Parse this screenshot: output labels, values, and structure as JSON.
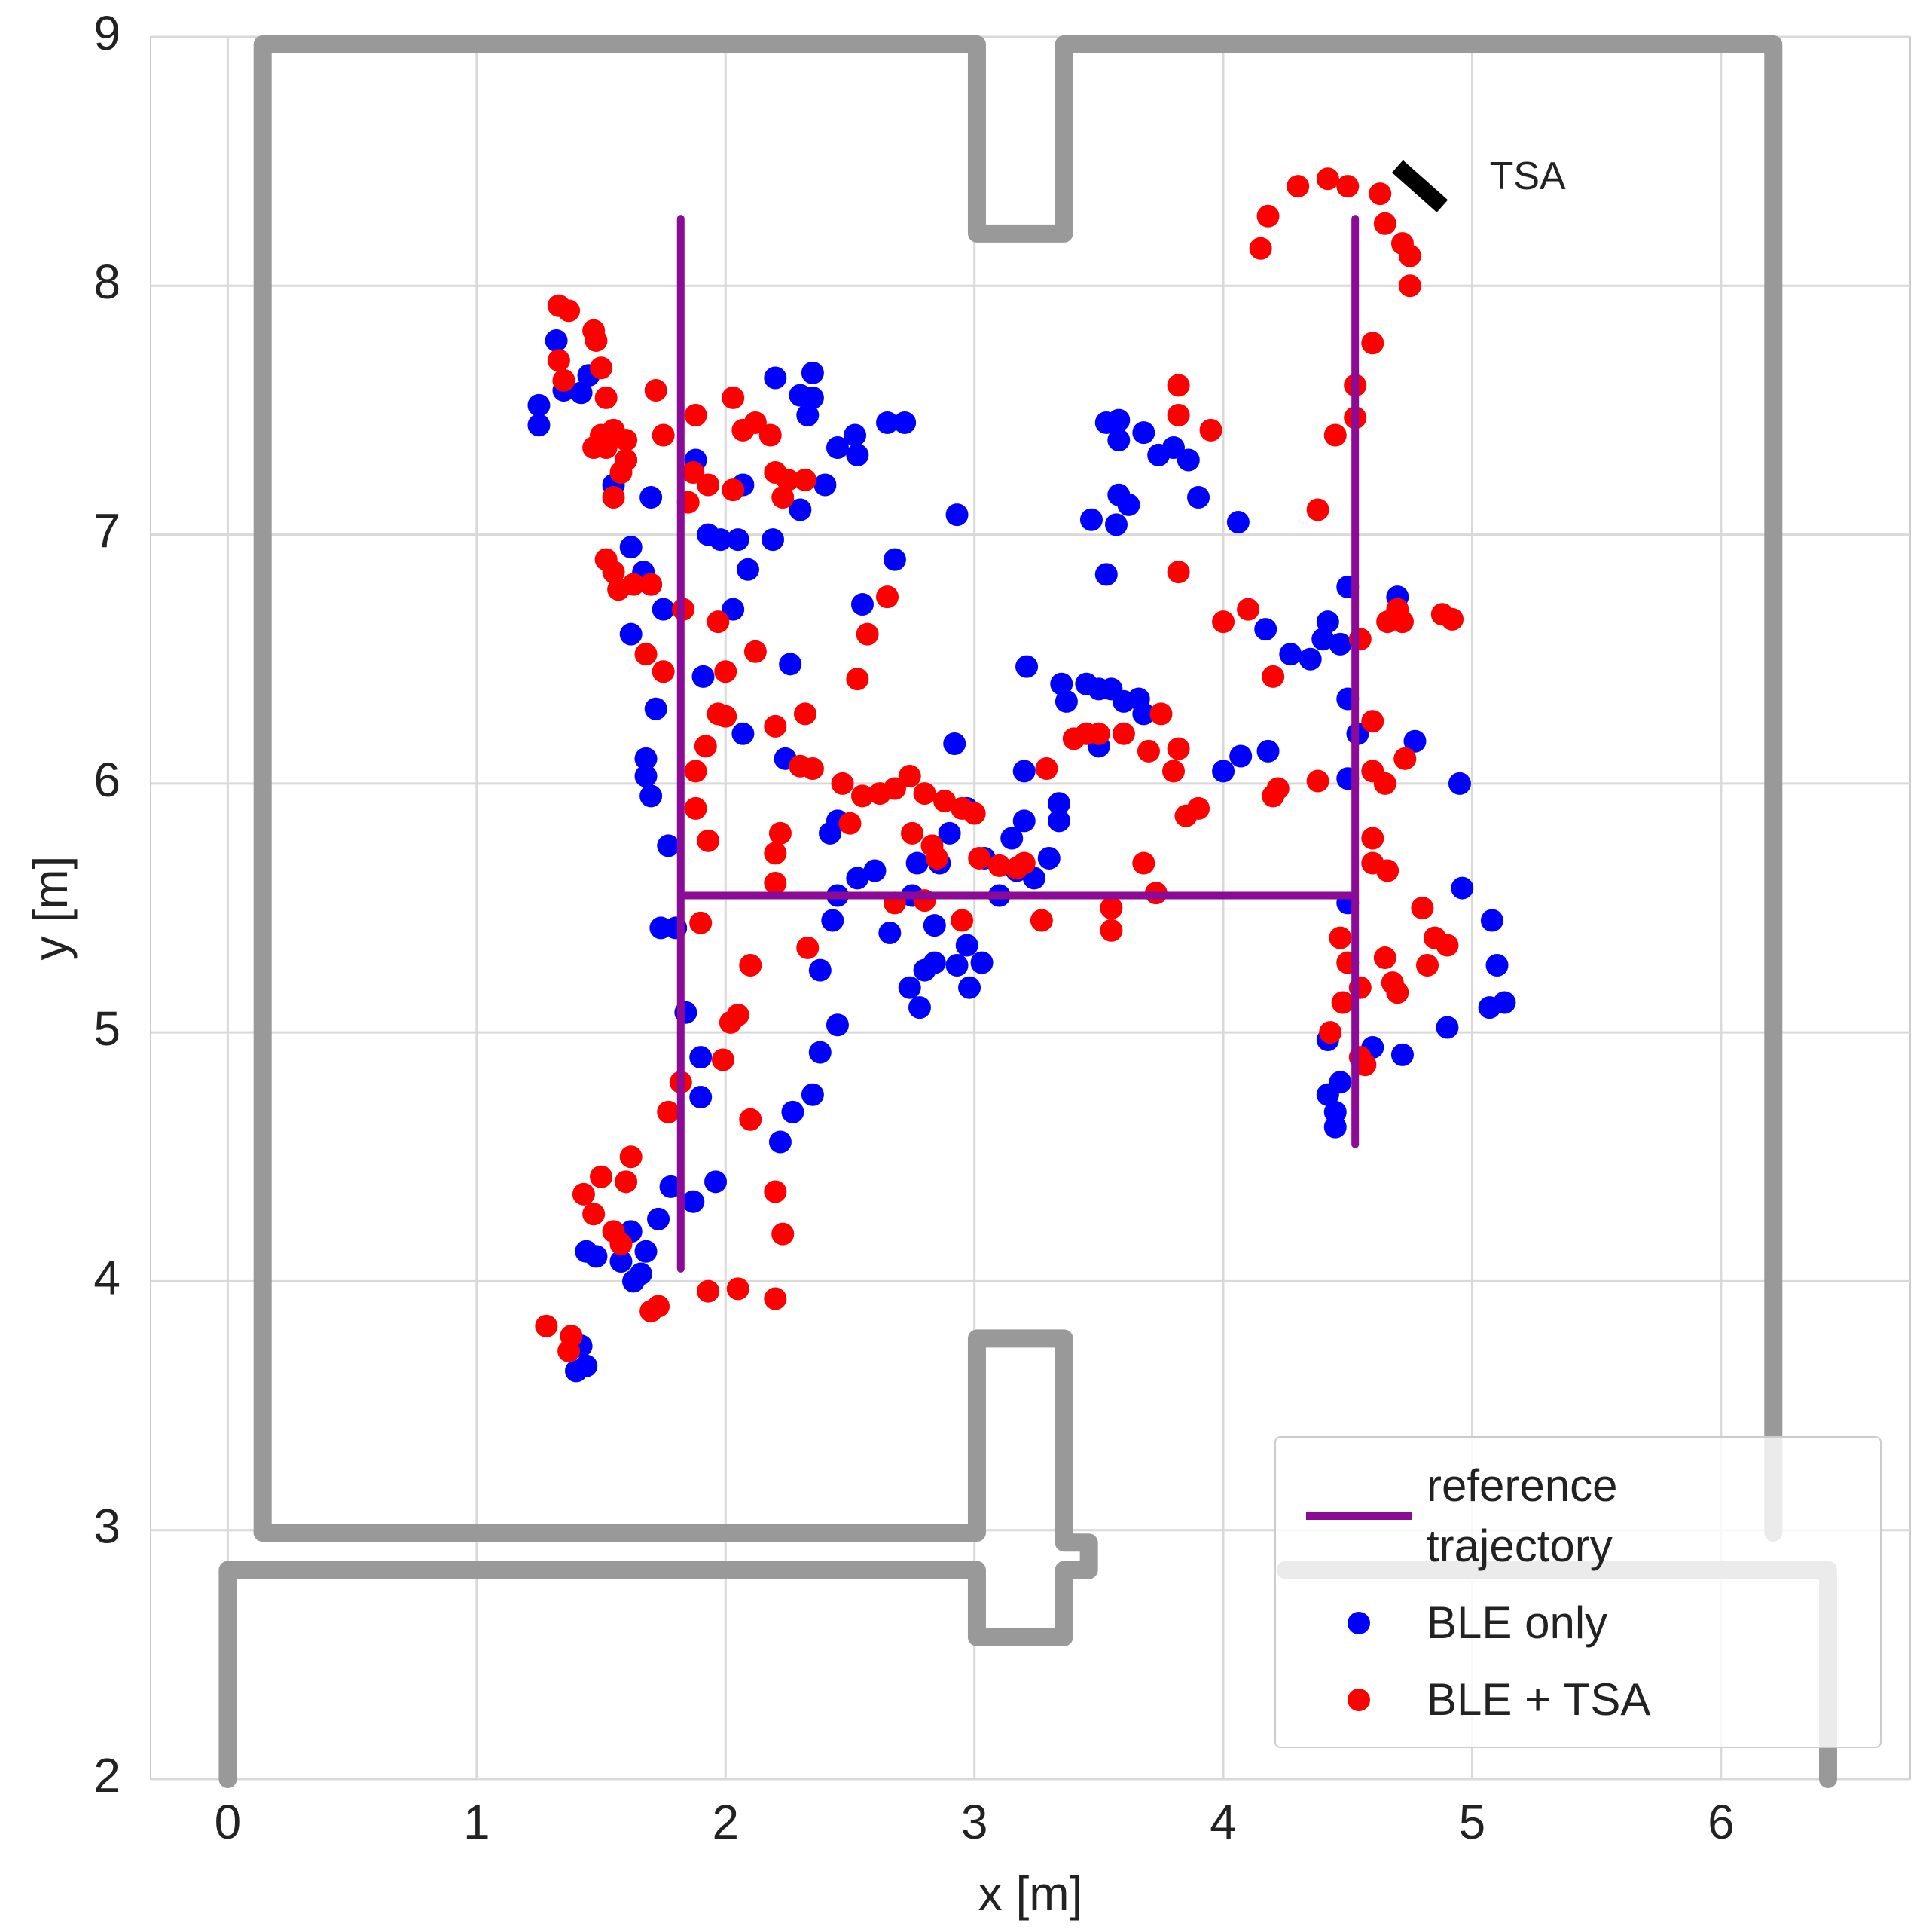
{
  "chart_data": {
    "type": "scatter",
    "xlabel": "x [m]",
    "ylabel": "y [m]",
    "xlim": [
      -0.31,
      6.76
    ],
    "ylim": [
      2,
      9
    ],
    "xticks": [
      0,
      1,
      2,
      3,
      4,
      5,
      6
    ],
    "yticks": [
      2,
      3,
      4,
      5,
      6,
      7,
      8,
      9
    ],
    "grid": true,
    "legend": "lower right",
    "walls": {
      "color": "#999999",
      "lines": [
        {
          "x": [
            0.14,
            0.14,
            3.01,
            3.01,
            3.36,
            3.36,
            6.21,
            6.21
          ],
          "y": [
            2.99,
            8.97,
            8.97,
            8.21,
            8.21,
            8.97,
            8.97,
            2.99
          ]
        },
        {
          "x": [
            0.14,
            3.01,
            3.01,
            3.36,
            3.36,
            3.46,
            3.46,
            3.36,
            3.36,
            3.01,
            3.01,
            0.0,
            0.0
          ],
          "y": [
            2.99,
            2.99,
            3.77,
            3.77,
            2.95,
            2.95,
            2.84,
            2.84,
            2.57,
            2.57,
            2.84,
            2.84,
            2.0
          ]
        },
        {
          "x": [
            4.25,
            6.43,
            6.43
          ],
          "y": [
            2.84,
            2.84,
            2.0
          ]
        }
      ]
    },
    "tsa_marker": {
      "color": "#000000",
      "x": [
        4.7,
        4.88
      ],
      "y": [
        8.48,
        8.32
      ]
    },
    "annotations": [
      {
        "text": "TSA",
        "x": 5.07,
        "y": 8.43
      }
    ],
    "series": [
      {
        "name": "BLE only",
        "type": "scatter",
        "color": "#0000ff",
        "x": [
          1.25,
          1.25,
          1.32,
          1.35,
          1.42,
          1.45,
          1.55,
          1.6,
          1.7,
          1.62,
          1.67,
          1.7,
          1.62,
          1.75,
          1.72,
          1.68,
          1.68,
          1.7,
          1.77,
          1.74,
          1.8,
          1.84,
          1.9,
          1.9,
          1.87,
          1.96,
          1.78,
          1.73,
          1.68,
          1.62,
          1.58,
          1.63,
          1.66,
          1.44,
          1.48,
          1.42,
          1.44,
          1.4,
          1.88,
          1.93,
          1.98,
          2.05,
          2.09,
          2.07,
          2.19,
          2.2,
          2.3,
          2.35,
          2.35,
          2.33,
          2.45,
          2.52,
          2.53,
          2.65,
          2.72,
          2.4,
          2.3,
          2.55,
          2.68,
          2.03,
          1.91,
          2.07,
          2.24,
          2.26,
          2.42,
          2.45,
          2.43,
          2.45,
          2.38,
          2.38,
          2.45,
          2.35,
          2.27,
          2.22,
          2.53,
          2.6,
          2.66,
          2.75,
          2.77,
          2.86,
          2.9,
          2.84,
          2.8,
          2.78,
          2.74,
          2.84,
          2.93,
          2.97,
          2.98,
          3.03,
          2.97,
          3.04,
          3.1,
          3.15,
          3.17,
          3.2,
          3.24,
          3.3,
          3.34,
          3.34,
          2.92,
          3.2,
          3.21,
          3.35,
          3.37,
          3.45,
          3.5,
          3.55,
          3.6,
          3.66,
          3.68,
          3.5,
          2.93,
          3.53,
          3.58,
          3.58,
          3.68,
          3.74,
          3.8,
          3.86,
          3.58,
          3.62,
          3.57,
          3.47,
          3.53,
          3.9,
          4.06,
          4.0,
          4.07,
          4.17,
          4.18,
          4.27,
          4.35,
          4.4,
          4.42,
          4.5,
          4.47,
          4.5,
          4.54,
          4.5,
          4.5,
          4.7,
          4.77,
          4.95,
          4.96,
          5.08,
          5.1,
          5.07,
          5.13,
          4.9,
          4.72,
          4.6,
          4.42,
          4.45,
          4.45,
          4.47,
          4.42
        ],
        "y": [
          7.52,
          7.44,
          7.78,
          7.58,
          7.57,
          7.64,
          7.2,
          7.3,
          7.15,
          6.95,
          6.85,
          6.8,
          6.6,
          6.7,
          6.3,
          6.1,
          6.03,
          5.95,
          5.75,
          5.42,
          5.42,
          5.08,
          4.9,
          4.74,
          4.32,
          4.4,
          4.38,
          4.25,
          4.12,
          4.2,
          4.08,
          4.0,
          4.03,
          4.12,
          4.1,
          3.74,
          3.66,
          3.64,
          7.3,
          7.0,
          6.98,
          6.98,
          6.86,
          7.2,
          6.98,
          7.63,
          7.56,
          7.65,
          7.55,
          7.48,
          7.35,
          7.4,
          7.32,
          7.45,
          7.45,
          7.2,
          7.1,
          6.72,
          6.9,
          6.7,
          6.43,
          6.2,
          6.1,
          6.48,
          5.8,
          5.85,
          5.45,
          5.55,
          5.25,
          4.92,
          5.03,
          4.75,
          4.68,
          4.56,
          5.62,
          5.65,
          5.4,
          5.55,
          5.68,
          5.68,
          5.8,
          5.43,
          5.25,
          5.1,
          5.18,
          5.28,
          5.27,
          5.35,
          5.18,
          5.28,
          5.9,
          5.7,
          5.55,
          5.78,
          5.65,
          5.85,
          5.62,
          5.7,
          5.85,
          5.92,
          6.16,
          6.05,
          6.47,
          6.4,
          6.33,
          6.4,
          6.38,
          6.38,
          6.33,
          6.34,
          6.28,
          6.15,
          7.08,
          7.45,
          7.46,
          7.38,
          7.41,
          7.32,
          7.35,
          7.3,
          7.16,
          7.12,
          7.04,
          7.06,
          6.84,
          7.15,
          7.05,
          6.05,
          6.11,
          6.62,
          6.13,
          6.52,
          6.5,
          6.58,
          6.65,
          6.79,
          6.56,
          6.34,
          6.2,
          6.02,
          5.52,
          6.75,
          6.17,
          6.0,
          5.58,
          5.45,
          5.27,
          5.1,
          5.12,
          5.02,
          4.91,
          4.94,
          4.75,
          4.68,
          4.62,
          4.8,
          4.97
        ]
      },
      {
        "name": "BLE + TSA",
        "type": "scatter",
        "color": "#ff0000",
        "x": [
          1.33,
          1.37,
          1.33,
          1.35,
          1.47,
          1.48,
          1.5,
          1.52,
          1.5,
          1.52,
          1.47,
          1.55,
          1.6,
          1.58,
          1.55,
          1.6,
          1.72,
          1.75,
          1.88,
          1.87,
          1.85,
          1.93,
          2.03,
          2.03,
          2.07,
          2.12,
          2.18,
          2.2,
          2.25,
          2.23,
          2.32,
          1.52,
          1.55,
          1.57,
          1.63,
          1.7,
          1.68,
          1.75,
          1.83,
          1.97,
          2.0,
          2.12,
          1.88,
          1.92,
          1.97,
          2.0,
          2.2,
          2.32,
          2.3,
          2.35,
          2.47,
          2.53,
          2.57,
          2.65,
          2.55,
          2.62,
          2.68,
          2.74,
          2.8,
          2.88,
          2.95,
          3.0,
          2.95,
          3.02,
          3.1,
          3.17,
          3.2,
          3.27,
          3.29,
          3.4,
          3.45,
          3.5,
          3.6,
          3.7,
          3.75,
          3.82,
          3.8,
          3.85,
          3.9,
          3.55,
          3.55,
          3.68,
          3.73,
          2.75,
          2.83,
          2.85,
          2.8,
          2.68,
          2.5,
          2.22,
          2.2,
          2.2,
          2.33,
          1.93,
          1.88,
          1.9,
          2.1,
          2.05,
          2.02,
          1.99,
          2.1,
          1.82,
          1.77,
          1.62,
          1.6,
          1.5,
          1.43,
          1.47,
          1.55,
          1.58,
          2.2,
          2.23,
          2.2,
          2.05,
          1.93,
          1.73,
          1.7,
          1.28,
          1.38,
          1.37,
          3.82,
          3.82,
          3.95,
          3.82,
          4.0,
          4.1,
          4.2,
          4.22,
          4.2,
          4.38,
          4.45,
          4.53,
          4.53,
          4.38,
          4.6,
          4.55,
          4.6,
          4.6,
          4.65,
          4.73,
          4.66,
          4.7,
          4.72,
          4.88,
          4.92,
          4.6,
          4.6,
          4.66,
          4.8,
          4.85,
          4.9,
          4.82,
          4.65,
          4.68,
          4.7,
          4.5,
          4.48,
          4.55,
          4.55,
          4.57,
          4.43,
          4.47,
          4.15,
          4.18,
          4.3,
          4.42,
          4.5,
          4.63,
          4.65,
          4.72,
          4.75,
          4.75
        ],
        "y": [
          7.92,
          7.9,
          7.7,
          7.62,
          7.82,
          7.78,
          7.67,
          7.55,
          7.4,
          7.35,
          7.35,
          7.42,
          7.3,
          7.25,
          7.15,
          7.38,
          7.58,
          7.4,
          7.48,
          7.25,
          7.13,
          7.2,
          7.18,
          7.55,
          7.42,
          7.45,
          7.4,
          7.25,
          7.22,
          7.15,
          7.22,
          6.9,
          6.85,
          6.78,
          6.8,
          6.8,
          6.52,
          6.45,
          6.7,
          6.65,
          6.45,
          6.53,
          6.05,
          6.15,
          6.28,
          6.27,
          6.23,
          6.28,
          6.07,
          6.06,
          6.0,
          6.42,
          6.6,
          6.75,
          5.95,
          5.96,
          5.98,
          6.03,
          5.96,
          5.93,
          5.9,
          5.88,
          5.45,
          5.7,
          5.67,
          5.66,
          5.68,
          5.45,
          6.06,
          6.18,
          6.2,
          6.2,
          6.2,
          6.13,
          6.28,
          6.14,
          6.05,
          5.87,
          5.9,
          5.41,
          5.5,
          5.68,
          5.56,
          5.8,
          5.75,
          5.7,
          5.53,
          5.52,
          5.84,
          5.8,
          5.72,
          5.6,
          5.34,
          5.77,
          5.9,
          5.44,
          5.27,
          5.07,
          5.04,
          4.89,
          4.65,
          4.8,
          4.68,
          4.5,
          4.4,
          4.42,
          4.35,
          4.27,
          4.2,
          4.15,
          4.36,
          4.19,
          3.93,
          3.97,
          3.96,
          3.9,
          3.88,
          3.82,
          3.78,
          3.72,
          7.6,
          7.48,
          7.42,
          6.85,
          6.65,
          6.7,
          6.43,
          5.98,
          5.95,
          6.01,
          7.4,
          7.6,
          7.47,
          7.1,
          7.77,
          6.58,
          6.25,
          6.05,
          6.0,
          6.1,
          6.65,
          6.7,
          6.65,
          6.68,
          6.66,
          5.78,
          5.68,
          5.65,
          5.5,
          5.38,
          5.35,
          5.27,
          5.3,
          5.2,
          5.16,
          5.28,
          5.12,
          5.18,
          4.9,
          4.87,
          5.0,
          5.38,
          8.15,
          8.28,
          8.4,
          8.43,
          8.4,
          8.37,
          8.25,
          8.17,
          8.12,
          8.0
        ]
      },
      {
        "name": "reference trajectory",
        "type": "line",
        "color": "#8b0a96",
        "x": [
          1.82,
          1.82,
          null,
          1.82,
          4.53,
          null,
          4.53,
          4.53
        ],
        "y": [
          4.05,
          8.27,
          null,
          5.55,
          5.55,
          null,
          4.55,
          8.27
        ]
      }
    ]
  }
}
